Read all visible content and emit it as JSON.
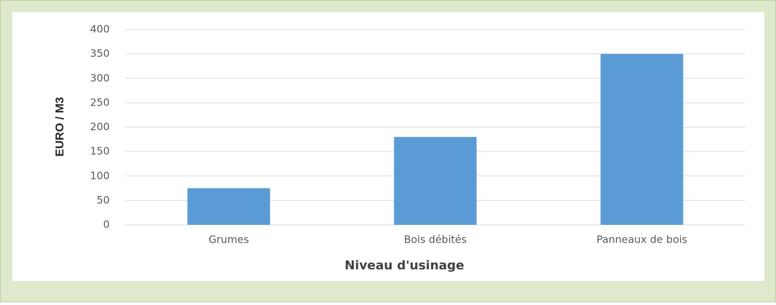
{
  "chart_data": {
    "type": "bar",
    "xlabel": "Niveau d'usinage",
    "ylabel": "EURO / M3",
    "categories": [
      "Grumes",
      "Bois débités",
      "Panneaux de bois"
    ],
    "values": [
      75,
      180,
      350
    ],
    "color": "#5b9bd5",
    "ylim": [
      0,
      400
    ],
    "yticks": [
      0,
      50,
      100,
      150,
      200,
      250,
      300,
      350,
      400
    ],
    "grid": true
  }
}
